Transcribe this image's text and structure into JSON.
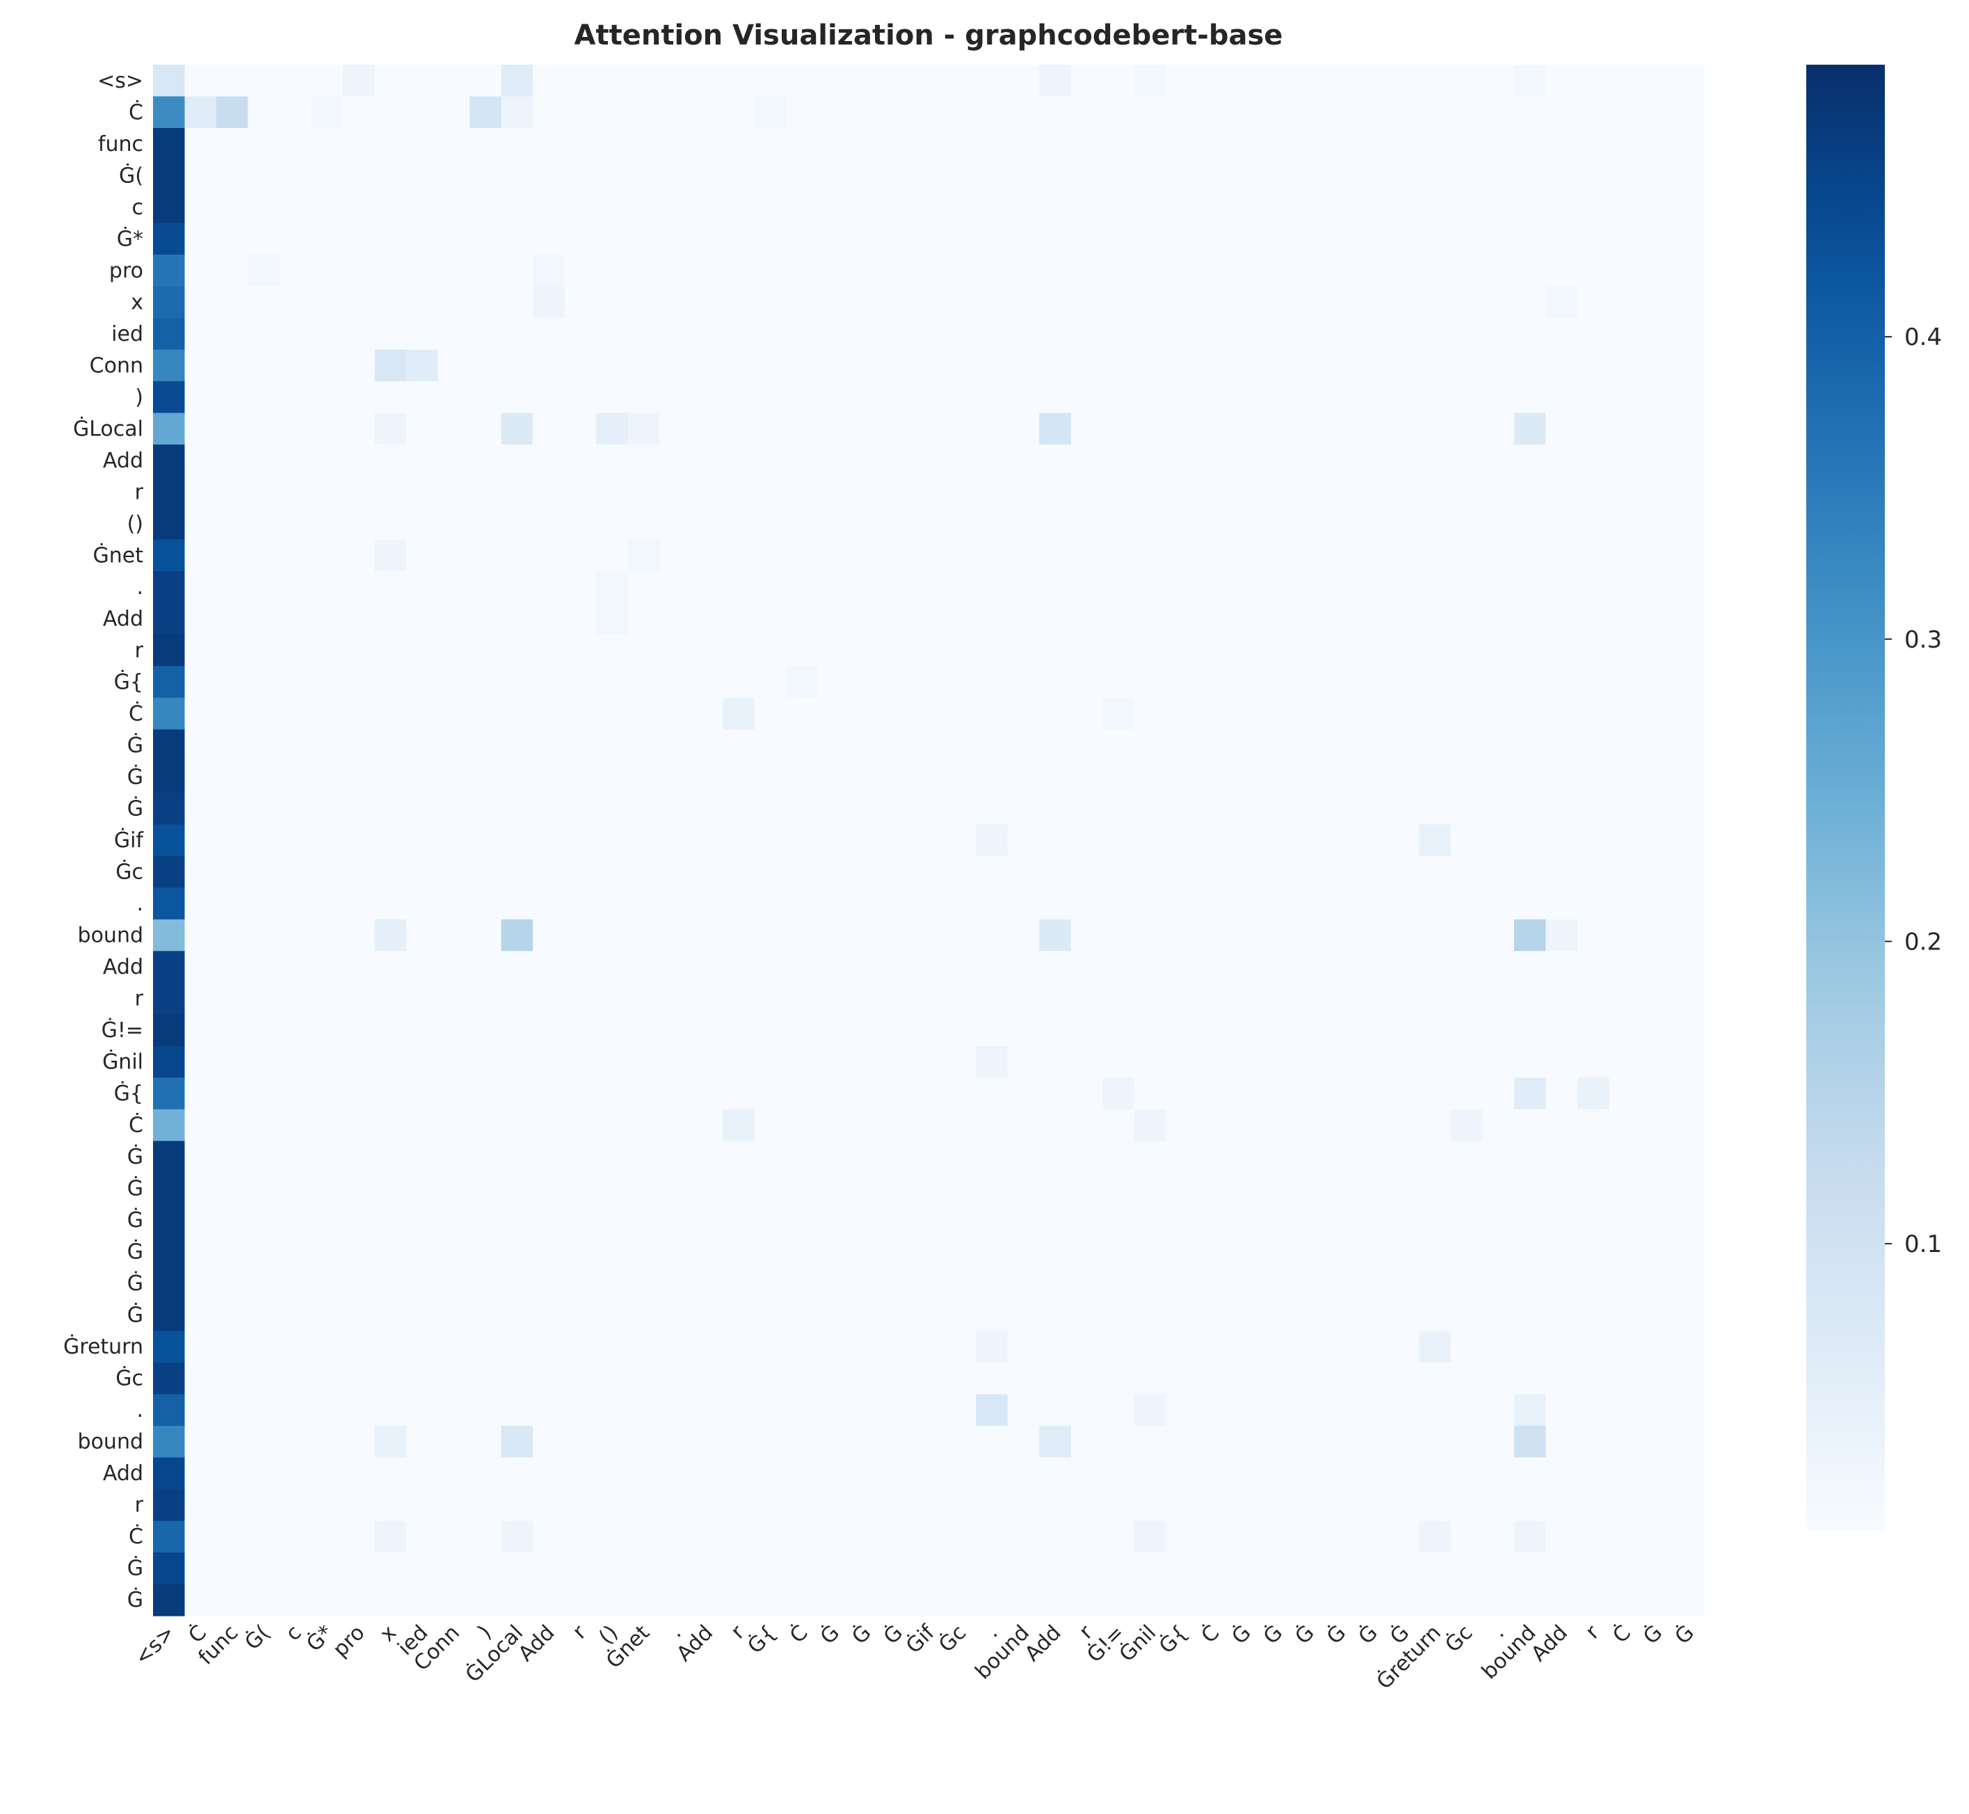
{
  "chart_data": {
    "type": "heatmap",
    "title": "Attention Visualization - graphcodebert-base",
    "colormap": "Blues",
    "grid": false,
    "legend": "colorbar-right",
    "colorbar": {
      "ticks": [
        0.1,
        0.2,
        0.3,
        0.4
      ],
      "range": [
        0.005,
        0.49
      ]
    },
    "tokens": [
      "<s>",
      "Ċ",
      "func",
      "Ġ(",
      "c",
      "Ġ*",
      "pro",
      "x",
      "ied",
      "Conn",
      ")",
      "ĠLocal",
      "Add",
      "r",
      "()",
      "Ġnet",
      ".",
      "Add",
      "r",
      "Ġ{",
      "Ċ",
      "Ġ",
      "Ġ",
      "Ġ",
      "Ġif",
      "Ġc",
      ".",
      "bound",
      "Add",
      "r",
      "Ġ!=",
      "Ġnil",
      "Ġ{",
      "Ċ",
      "Ġ",
      "Ġ",
      "Ġ",
      "Ġ",
      "Ġ",
      "Ġ",
      "Ġreturn",
      "Ġc",
      ".",
      "bound",
      "Add",
      "r",
      "Ċ",
      "Ġ",
      "Ġ"
    ],
    "first_column": [
      0.08,
      0.32,
      0.47,
      0.47,
      0.47,
      0.44,
      0.36,
      0.38,
      0.4,
      0.33,
      0.44,
      0.26,
      0.47,
      0.47,
      0.47,
      0.43,
      0.46,
      0.46,
      0.47,
      0.4,
      0.33,
      0.47,
      0.47,
      0.46,
      0.43,
      0.46,
      0.42,
      0.22,
      0.46,
      0.46,
      0.47,
      0.45,
      0.37,
      0.24,
      0.47,
      0.47,
      0.47,
      0.47,
      0.47,
      0.47,
      0.43,
      0.46,
      0.4,
      0.33,
      0.45,
      0.46,
      0.39,
      0.45,
      0.47
    ],
    "background_value": 0.006,
    "hot_cells": [
      [
        0,
        6,
        0.03
      ],
      [
        0,
        11,
        0.06
      ],
      [
        0,
        28,
        0.03
      ],
      [
        0,
        31,
        0.02
      ],
      [
        0,
        43,
        0.02
      ],
      [
        1,
        1,
        0.06
      ],
      [
        1,
        2,
        0.12
      ],
      [
        1,
        5,
        0.02
      ],
      [
        1,
        10,
        0.09
      ],
      [
        1,
        11,
        0.03
      ],
      [
        1,
        19,
        0.02
      ],
      [
        6,
        3,
        0.02
      ],
      [
        6,
        12,
        0.02
      ],
      [
        7,
        12,
        0.03
      ],
      [
        7,
        44,
        0.02
      ],
      [
        9,
        7,
        0.08
      ],
      [
        9,
        8,
        0.06
      ],
      [
        11,
        7,
        0.03
      ],
      [
        11,
        11,
        0.07
      ],
      [
        11,
        14,
        0.05
      ],
      [
        11,
        15,
        0.03
      ],
      [
        11,
        28,
        0.09
      ],
      [
        11,
        43,
        0.07
      ],
      [
        15,
        7,
        0.03
      ],
      [
        15,
        15,
        0.02
      ],
      [
        16,
        14,
        0.02
      ],
      [
        17,
        14,
        0.02
      ],
      [
        19,
        20,
        0.02
      ],
      [
        20,
        18,
        0.04
      ],
      [
        20,
        30,
        0.02
      ],
      [
        24,
        26,
        0.03
      ],
      [
        24,
        40,
        0.04
      ],
      [
        27,
        7,
        0.05
      ],
      [
        27,
        11,
        0.15
      ],
      [
        27,
        28,
        0.07
      ],
      [
        27,
        43,
        0.15
      ],
      [
        27,
        44,
        0.03
      ],
      [
        31,
        26,
        0.03
      ],
      [
        32,
        30,
        0.03
      ],
      [
        32,
        43,
        0.06
      ],
      [
        32,
        45,
        0.04
      ],
      [
        33,
        18,
        0.04
      ],
      [
        33,
        31,
        0.03
      ],
      [
        33,
        41,
        0.03
      ],
      [
        40,
        26,
        0.03
      ],
      [
        40,
        40,
        0.04
      ],
      [
        42,
        26,
        0.08
      ],
      [
        42,
        31,
        0.03
      ],
      [
        42,
        43,
        0.04
      ],
      [
        43,
        7,
        0.04
      ],
      [
        43,
        11,
        0.08
      ],
      [
        43,
        28,
        0.06
      ],
      [
        43,
        43,
        0.1
      ],
      [
        46,
        7,
        0.03
      ],
      [
        46,
        11,
        0.03
      ],
      [
        46,
        31,
        0.03
      ],
      [
        46,
        40,
        0.03
      ],
      [
        46,
        43,
        0.03
      ]
    ]
  }
}
